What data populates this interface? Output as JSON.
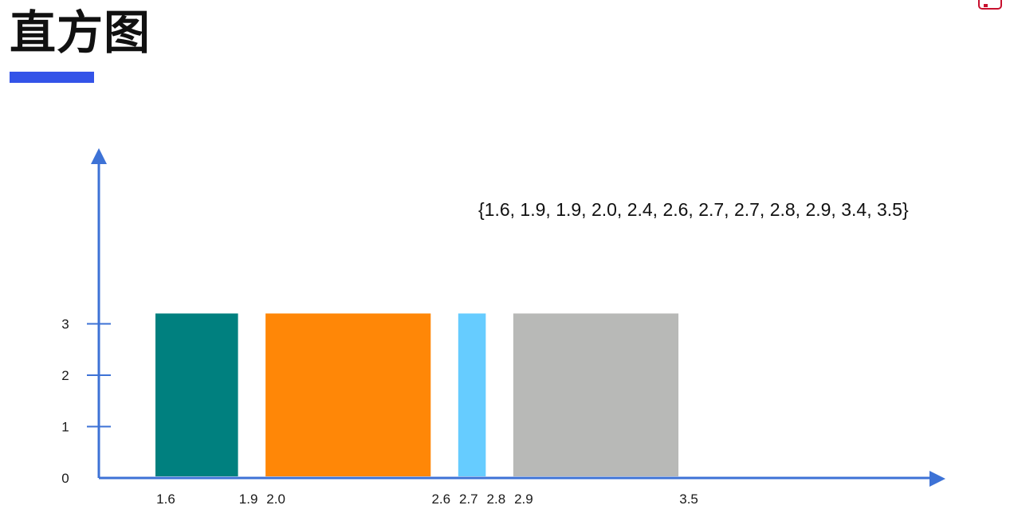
{
  "title": "直方图",
  "dataset_text": "{1.6, 1.9, 1.9, 2.0, 2.4, 2.6, 2.7, 2.7, 2.8, 2.9, 3.4, 3.5}",
  "colors": {
    "axis": "#3d72d6",
    "title_underline": "#3353e8",
    "bars": [
      "#00807f",
      "#ff8707",
      "#66ccff",
      "#b8b9b7"
    ]
  },
  "chart_data": {
    "type": "bar",
    "title": "直方图",
    "xlabel": "",
    "ylabel": "",
    "ylim": [
      0,
      3
    ],
    "y_ticks": [
      "0",
      "1",
      "2",
      "3"
    ],
    "x_ticks": [
      "1.6",
      "1.9",
      "2.0",
      "2.6",
      "2.7",
      "2.8",
      "2.9",
      "3.5"
    ],
    "bins": [
      {
        "start": 1.6,
        "end": 1.9,
        "value": 3,
        "color": "#00807f"
      },
      {
        "start": 2.0,
        "end": 2.6,
        "value": 3,
        "color": "#ff8707"
      },
      {
        "start": 2.7,
        "end": 2.8,
        "value": 3,
        "color": "#66ccff"
      },
      {
        "start": 2.9,
        "end": 3.5,
        "value": 3,
        "color": "#b8b9b7"
      }
    ],
    "grid": false
  }
}
